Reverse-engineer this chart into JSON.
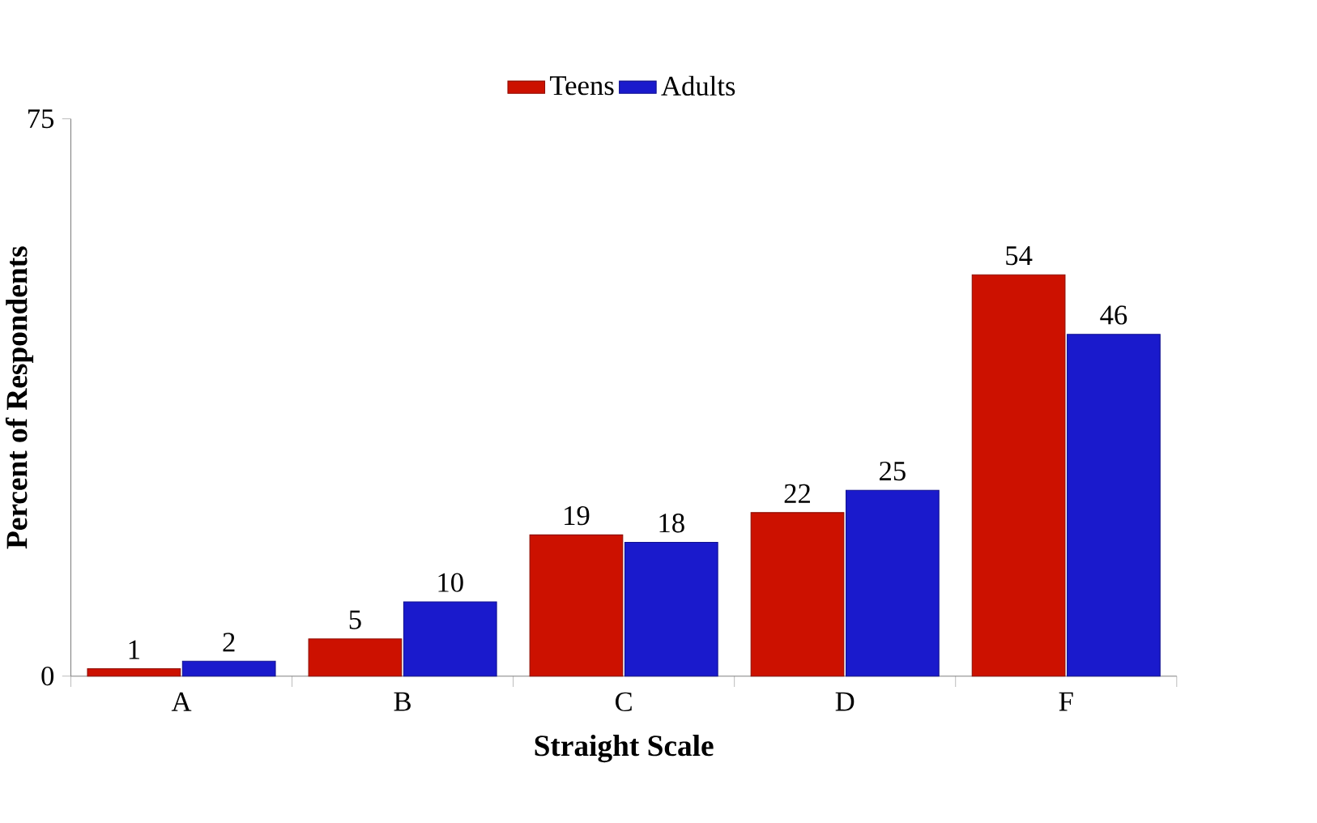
{
  "chart_data": {
    "type": "bar",
    "xlabel": "Straight Scale",
    "ylabel": "Percent of Respondents",
    "categories": [
      "A",
      "B",
      "C",
      "D",
      "F"
    ],
    "series": [
      {
        "name": "Teens",
        "color": "#cc1100",
        "values": [
          1,
          5,
          19,
          22,
          54
        ]
      },
      {
        "name": "Adults",
        "color": "#1a1acc",
        "values": [
          2,
          10,
          18,
          25,
          46
        ]
      }
    ],
    "ylim": [
      0,
      75
    ],
    "yticks": [
      0,
      75
    ],
    "data_labels": true,
    "legend": "top",
    "grid": false
  }
}
